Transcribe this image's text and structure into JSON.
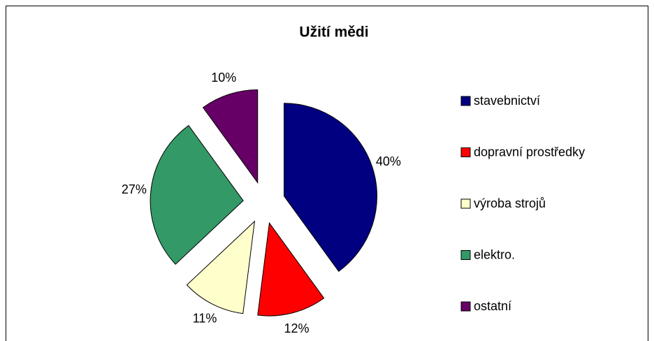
{
  "chart_data": {
    "type": "pie",
    "title": "Užití mědi",
    "categories": [
      "stavebnictví",
      "dopravní prostředky",
      "výroba strojů",
      "elektro.",
      "ostatní"
    ],
    "values": [
      40,
      12,
      11,
      27,
      10
    ],
    "value_labels": [
      "40%",
      "12%",
      "11%",
      "27%",
      "10%"
    ],
    "colors": [
      "#000080",
      "#ff0000",
      "#ffffcc",
      "#339966",
      "#660066"
    ],
    "legend": "right"
  }
}
